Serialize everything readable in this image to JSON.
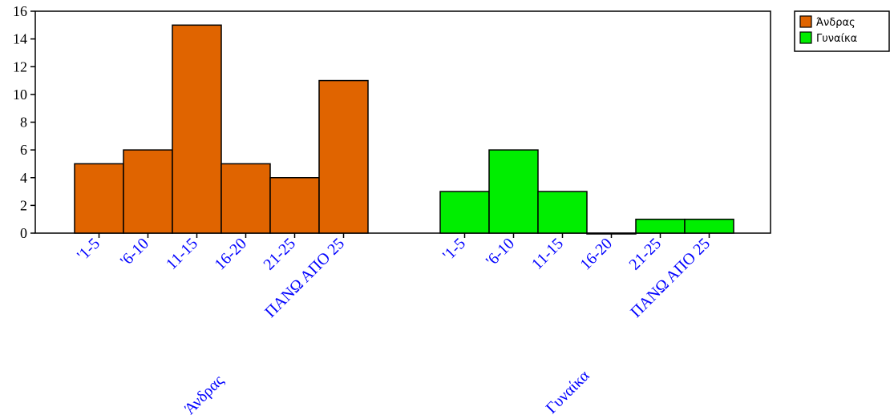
{
  "chart_data": {
    "type": "bar",
    "ylim": [
      0,
      16
    ],
    "yticks": [
      0,
      2,
      4,
      6,
      8,
      10,
      12,
      14,
      16
    ],
    "grid": false,
    "legend_position": "top-right",
    "label_color": "#0000ff",
    "groups": [
      {
        "name": "Άνδρας",
        "color": "#e06400",
        "categories": [
          "'1-5",
          "'6-10",
          "11-15",
          "16-20",
          "21-25",
          "ΠΑΝΩ ΑΠΟ 25"
        ],
        "values": [
          5,
          6,
          15,
          5,
          4,
          11
        ]
      },
      {
        "name": "Γυναίκα",
        "color": "#00ee00",
        "categories": [
          "'1-5",
          "'6-10",
          "11-15",
          "16-20",
          "21-25",
          "ΠΑΝΩ ΑΠΟ 25"
        ],
        "values": [
          3,
          6,
          3,
          0,
          1,
          1
        ]
      }
    ],
    "legend": [
      {
        "label": "Άνδρας",
        "color": "#e06400"
      },
      {
        "label": "Γυναίκα",
        "color": "#00ee00"
      }
    ]
  }
}
